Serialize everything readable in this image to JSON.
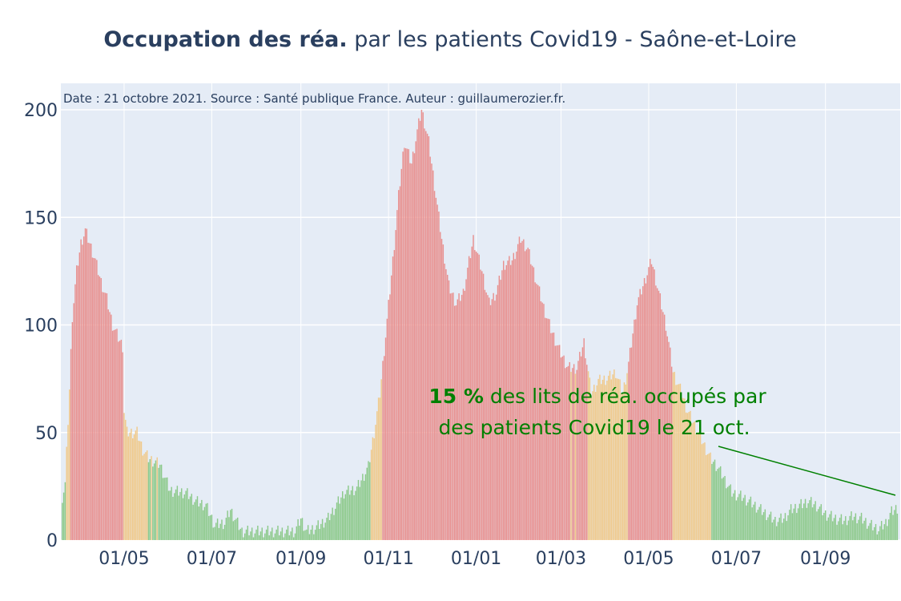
{
  "title": {
    "bold": "Occupation des réa.",
    "rest": " par les patients Covid19 - Saône-et-Loire"
  },
  "source_note": "Date : 21 octobre 2021. Source : Santé publique France. Auteur : guillaumerozier.fr.",
  "annotation": {
    "value": "15  %",
    "line1_rest": " des lits de réa. occupés par",
    "line2": "des patients Covid19 le 21 oct."
  },
  "colors": {
    "plot_bg": "#e5ecf6",
    "red": "#e8908f",
    "orange": "#f0c98a",
    "green": "#8cc98a",
    "annotation": "#008000",
    "title": "#2a3f5f"
  },
  "chart_data": {
    "type": "bar",
    "x_start": "2020-03-19",
    "x_end": "2021-10-21",
    "xlim": [
      "2020-03-18",
      "2021-10-23"
    ],
    "ylim": [
      0,
      200
    ],
    "y_ticks": [
      0,
      50,
      100,
      150,
      200
    ],
    "x_ticks": [
      {
        "date": "2020-05-01",
        "label": "01/05"
      },
      {
        "date": "2020-07-01",
        "label": "01/07"
      },
      {
        "date": "2020-09-01",
        "label": "01/09"
      },
      {
        "date": "2020-11-01",
        "label": "01/11"
      },
      {
        "date": "2021-01-01",
        "label": "01/01"
      },
      {
        "date": "2021-03-01",
        "label": "01/03"
      },
      {
        "date": "2021-05-01",
        "label": "01/05"
      },
      {
        "date": "2021-07-01",
        "label": "01/07"
      },
      {
        "date": "2021-09-01",
        "label": "01/09"
      }
    ],
    "grid": true,
    "color_thresholds": {
      "green_below_pct": 30,
      "orange_below_pct": 60
    },
    "keyframes": [
      [
        "2020-03-19",
        20
      ],
      [
        "2020-03-21",
        26
      ],
      [
        "2020-03-24",
        70
      ],
      [
        "2020-03-26",
        104
      ],
      [
        "2020-03-29",
        125
      ],
      [
        "2020-04-01",
        138
      ],
      [
        "2020-04-04",
        144
      ],
      [
        "2020-04-07",
        138
      ],
      [
        "2020-04-11",
        130
      ],
      [
        "2020-04-15",
        120
      ],
      [
        "2020-04-19",
        112
      ],
      [
        "2020-04-23",
        100
      ],
      [
        "2020-04-27",
        94
      ],
      [
        "2020-04-30",
        90
      ],
      [
        "2020-05-01",
        60
      ],
      [
        "2020-05-03",
        50
      ],
      [
        "2020-05-10",
        50
      ],
      [
        "2020-05-14",
        42
      ],
      [
        "2020-05-18",
        38
      ],
      [
        "2020-05-26",
        35
      ],
      [
        "2020-06-02",
        23
      ],
      [
        "2020-06-13",
        22
      ],
      [
        "2020-06-20",
        18
      ],
      [
        "2020-06-27",
        16
      ],
      [
        "2020-07-03",
        7
      ],
      [
        "2020-07-10",
        8
      ],
      [
        "2020-07-14",
        14
      ],
      [
        "2020-07-22",
        4
      ],
      [
        "2020-08-28",
        4
      ],
      [
        "2020-09-01",
        10
      ],
      [
        "2020-09-05",
        4
      ],
      [
        "2020-09-12",
        6
      ],
      [
        "2020-09-20",
        10
      ],
      [
        "2020-10-01",
        22
      ],
      [
        "2020-10-10",
        24
      ],
      [
        "2020-10-18",
        34
      ],
      [
        "2020-10-22",
        50
      ],
      [
        "2020-10-26",
        68
      ],
      [
        "2020-10-30",
        95
      ],
      [
        "2020-11-04",
        130
      ],
      [
        "2020-11-08",
        160
      ],
      [
        "2020-11-12",
        185
      ],
      [
        "2020-11-17",
        175
      ],
      [
        "2020-11-21",
        190
      ],
      [
        "2020-11-24",
        200
      ],
      [
        "2020-11-29",
        185
      ],
      [
        "2020-12-03",
        165
      ],
      [
        "2020-12-08",
        140
      ],
      [
        "2020-12-13",
        118
      ],
      [
        "2020-12-18",
        110
      ],
      [
        "2020-12-23",
        115
      ],
      [
        "2020-12-30",
        140
      ],
      [
        "2021-01-05",
        125
      ],
      [
        "2021-01-10",
        110
      ],
      [
        "2021-01-15",
        115
      ],
      [
        "2021-01-20",
        128
      ],
      [
        "2021-01-26",
        130
      ],
      [
        "2021-02-01",
        140
      ],
      [
        "2021-02-06",
        135
      ],
      [
        "2021-02-12",
        120
      ],
      [
        "2021-02-17",
        108
      ],
      [
        "2021-02-22",
        98
      ],
      [
        "2021-02-28",
        88
      ],
      [
        "2021-03-06",
        80
      ],
      [
        "2021-03-12",
        80
      ],
      [
        "2021-03-17",
        92
      ],
      [
        "2021-03-22",
        68
      ],
      [
        "2021-03-27",
        74
      ],
      [
        "2021-04-02",
        75
      ],
      [
        "2021-04-08",
        78
      ],
      [
        "2021-04-13",
        68
      ],
      [
        "2021-04-17",
        82
      ],
      [
        "2021-04-23",
        110
      ],
      [
        "2021-04-28",
        120
      ],
      [
        "2021-05-03",
        130
      ],
      [
        "2021-05-08",
        115
      ],
      [
        "2021-05-13",
        100
      ],
      [
        "2021-05-18",
        78
      ],
      [
        "2021-05-23",
        70
      ],
      [
        "2021-05-28",
        60
      ],
      [
        "2021-06-03",
        52
      ],
      [
        "2021-06-08",
        45
      ],
      [
        "2021-06-13",
        38
      ],
      [
        "2021-06-18",
        34
      ],
      [
        "2021-06-23",
        28
      ],
      [
        "2021-06-28",
        22
      ],
      [
        "2021-07-05",
        20
      ],
      [
        "2021-07-10",
        18
      ],
      [
        "2021-07-16",
        15
      ],
      [
        "2021-07-22",
        12
      ],
      [
        "2021-07-28",
        9
      ],
      [
        "2021-08-03",
        10
      ],
      [
        "2021-08-08",
        14
      ],
      [
        "2021-08-14",
        16
      ],
      [
        "2021-08-20",
        18
      ],
      [
        "2021-08-26",
        16
      ],
      [
        "2021-09-01",
        12
      ],
      [
        "2021-09-08",
        10
      ],
      [
        "2021-09-14",
        9
      ],
      [
        "2021-09-20",
        11
      ],
      [
        "2021-09-26",
        10
      ],
      [
        "2021-10-02",
        7
      ],
      [
        "2021-10-08",
        5
      ],
      [
        "2021-10-13",
        8
      ],
      [
        "2021-10-17",
        13
      ],
      [
        "2021-10-21",
        15
      ]
    ]
  }
}
